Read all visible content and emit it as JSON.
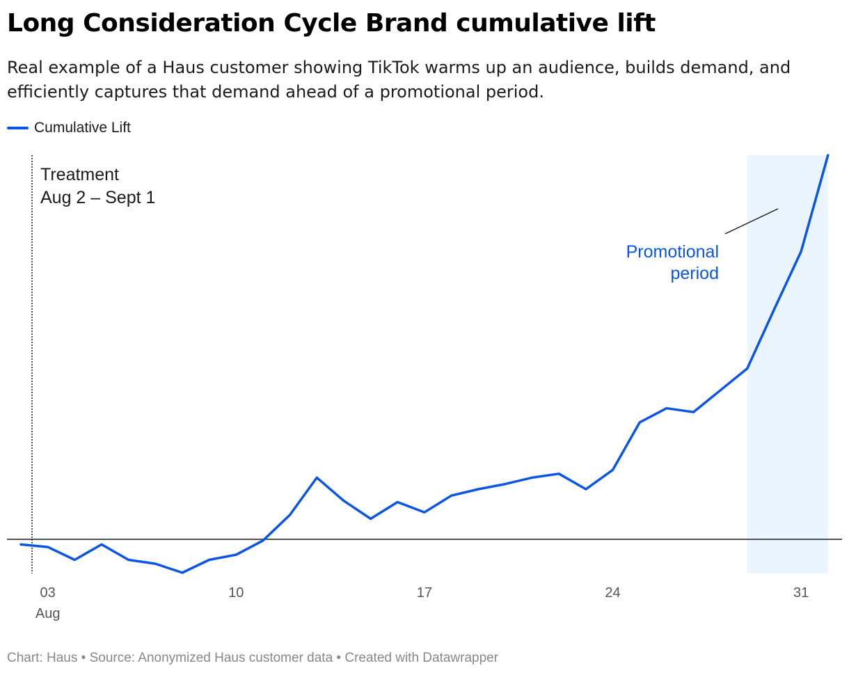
{
  "title": "Long Consideration Cycle Brand cumulative lift",
  "subtitle": "Real example of a Haus customer showing TikTok warms up an audience, builds demand, and efficiently captures that demand ahead of a promotional period.",
  "legend": [
    {
      "label": "Cumulative Lift",
      "color": "#0b55e6"
    }
  ],
  "footer": "Chart: Haus • Source: Anonymized Haus customer data • Created with Datawrapper",
  "chart_data": {
    "type": "line",
    "x_axis": {
      "type": "date",
      "domain": [
        "2024-08-02",
        "2024-09-01"
      ],
      "ticks": [
        {
          "date": "2024-08-03",
          "label": "03",
          "sublabel": "Aug"
        },
        {
          "date": "2024-08-10",
          "label": "10"
        },
        {
          "date": "2024-08-17",
          "label": "17"
        },
        {
          "date": "2024-08-24",
          "label": "24"
        },
        {
          "date": "2024-08-31",
          "label": "31"
        }
      ]
    },
    "y_axis": {
      "ticks_shown": false,
      "baseline": 0,
      "range": [
        -1.3,
        14.2
      ]
    },
    "grid": false,
    "legend_position": "top-left",
    "series": [
      {
        "name": "Cumulative Lift",
        "color": "#0b55e6",
        "points": [
          {
            "x": "2024-08-02",
            "y": -0.2
          },
          {
            "x": "2024-08-03",
            "y": -0.3
          },
          {
            "x": "2024-08-04",
            "y": -0.8
          },
          {
            "x": "2024-08-05",
            "y": -0.2
          },
          {
            "x": "2024-08-06",
            "y": -0.8
          },
          {
            "x": "2024-08-07",
            "y": -0.95
          },
          {
            "x": "2024-08-08",
            "y": -1.3
          },
          {
            "x": "2024-08-09",
            "y": -0.8
          },
          {
            "x": "2024-08-10",
            "y": -0.6
          },
          {
            "x": "2024-08-11",
            "y": -0.05
          },
          {
            "x": "2024-08-12",
            "y": 0.95
          },
          {
            "x": "2024-08-13",
            "y": 2.4
          },
          {
            "x": "2024-08-14",
            "y": 1.5
          },
          {
            "x": "2024-08-15",
            "y": 0.8
          },
          {
            "x": "2024-08-16",
            "y": 1.45
          },
          {
            "x": "2024-08-17",
            "y": 1.05
          },
          {
            "x": "2024-08-18",
            "y": 1.7
          },
          {
            "x": "2024-08-19",
            "y": 1.95
          },
          {
            "x": "2024-08-20",
            "y": 2.15
          },
          {
            "x": "2024-08-21",
            "y": 2.4
          },
          {
            "x": "2024-08-22",
            "y": 2.55
          },
          {
            "x": "2024-08-23",
            "y": 1.95
          },
          {
            "x": "2024-08-24",
            "y": 2.7
          },
          {
            "x": "2024-08-25",
            "y": 4.55
          },
          {
            "x": "2024-08-26",
            "y": 5.1
          },
          {
            "x": "2024-08-27",
            "y": 4.95
          },
          {
            "x": "2024-08-28",
            "y": 5.8
          },
          {
            "x": "2024-08-29",
            "y": 6.65
          },
          {
            "x": "2024-08-30",
            "y": 8.95
          },
          {
            "x": "2024-08-31",
            "y": 11.2
          },
          {
            "x": "2024-09-01",
            "y": 14.95
          }
        ]
      }
    ],
    "annotations": [
      {
        "type": "vline",
        "x": "2024-08-02",
        "lines": [
          "Treatment",
          "Aug 2 – Sept 1"
        ],
        "color": "#1a1a1a"
      },
      {
        "type": "range",
        "x_start": "2024-08-29",
        "x_end": "2024-09-01",
        "lines": [
          "Promotional",
          "period"
        ],
        "color": "#0b55e6",
        "fill": "#ebf5ff"
      }
    ]
  }
}
